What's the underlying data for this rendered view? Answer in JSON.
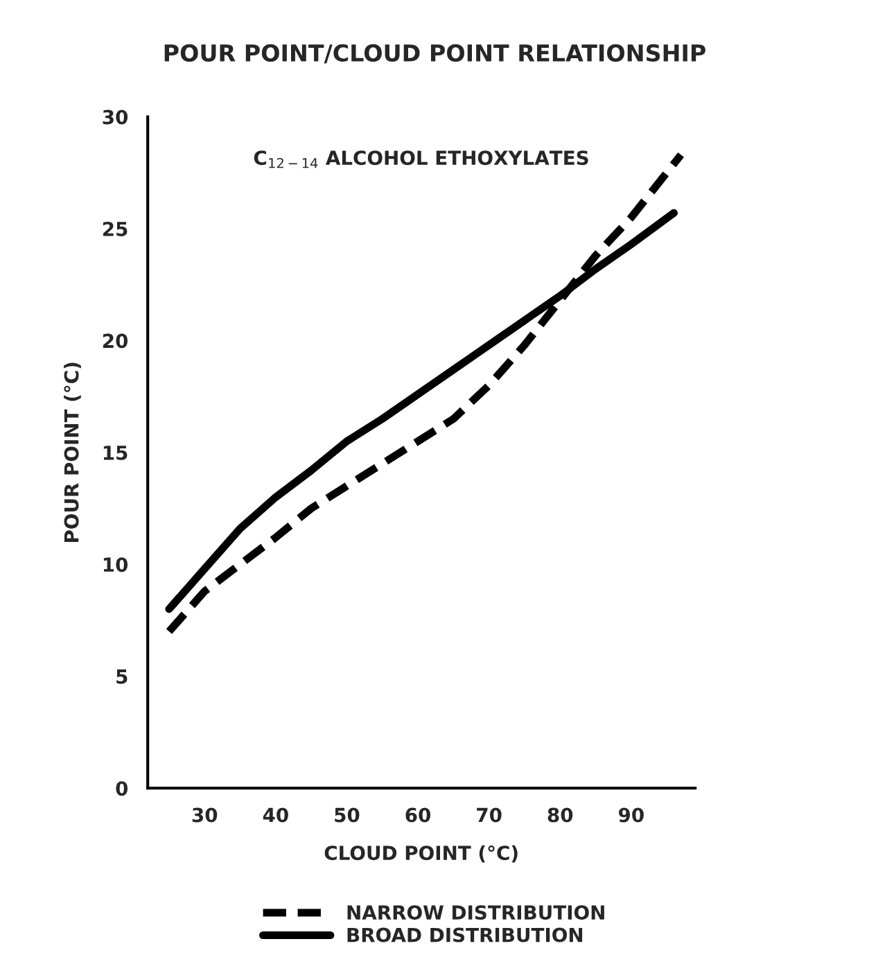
{
  "chart_data": {
    "type": "line",
    "title": "POUR POINT/CLOUD POINT RELATIONSHIP",
    "xlabel": "CLOUD POINT (°C)",
    "ylabel": "POUR POINT (°C)",
    "annotations": [
      "C$_{12−14}$ ALCOHOL ETHOXYLATES"
    ],
    "xlim": [
      22,
      99
    ],
    "xticks": [
      30,
      40,
      50,
      60,
      70,
      80,
      90
    ],
    "ylim": [
      0,
      30
    ],
    "yticks": [
      0,
      5,
      10,
      15,
      20,
      25,
      30
    ],
    "grid": false,
    "legend": "bottom",
    "series": [
      {
        "name": "NARROW DISTRIBUTION",
        "color": "#000000",
        "line_style": "dashed",
        "x": [
          25,
          30,
          35,
          40,
          45,
          50,
          55,
          60,
          65,
          70,
          75,
          80,
          85,
          90,
          95,
          97
        ],
        "values": [
          7,
          8.8,
          10,
          11.2,
          12.5,
          13.5,
          14.5,
          15.5,
          16.5,
          18,
          19.8,
          21.8,
          23.8,
          25.5,
          27.5,
          28.3
        ]
      },
      {
        "name": "BROAD DISTRIBUTION",
        "color": "#000000",
        "line_style": "solid",
        "x": [
          25,
          30,
          35,
          40,
          45,
          50,
          55,
          60,
          65,
          70,
          75,
          80,
          85,
          90,
          96
        ],
        "values": [
          8,
          9.8,
          11.6,
          13,
          14.2,
          15.5,
          16.5,
          17.6,
          18.7,
          19.8,
          20.9,
          22,
          23.2,
          24.3,
          25.7
        ]
      }
    ]
  }
}
